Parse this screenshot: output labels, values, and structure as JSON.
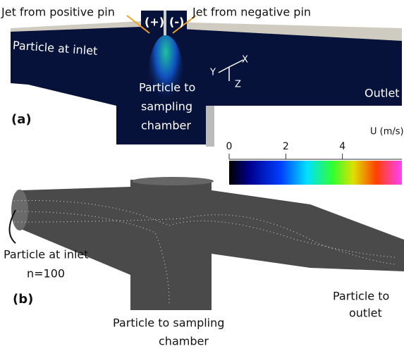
{
  "panels": [
    {
      "label": "(a)",
      "annotations": [
        {
          "lines": [
            "Jet from positive pin"
          ]
        },
        {
          "lines": [
            "Jet from negative pin"
          ]
        },
        {
          "lines": [
            "(+)"
          ]
        },
        {
          "lines": [
            "(-)"
          ]
        },
        {
          "lines": [
            "Particle at inlet"
          ]
        },
        {
          "lines": [
            "Particle to",
            "sampling",
            "chamber"
          ]
        },
        {
          "lines": [
            "Outlet"
          ]
        }
      ],
      "axes": [
        "X",
        "Y",
        "Z"
      ],
      "colorbar": {
        "label": "U (m/s)",
        "lim": [
          0,
          6.1
        ],
        "ticks": [
          0,
          2,
          4
        ]
      }
    },
    {
      "label": "(b)",
      "annotations": [
        {
          "lines": [
            "Particle at inlet",
            "n=100"
          ]
        },
        {
          "lines": [
            "Particle to sampling",
            "chamber"
          ]
        },
        {
          "lines": [
            "Particle to",
            "outlet"
          ]
        }
      ]
    }
  ]
}
